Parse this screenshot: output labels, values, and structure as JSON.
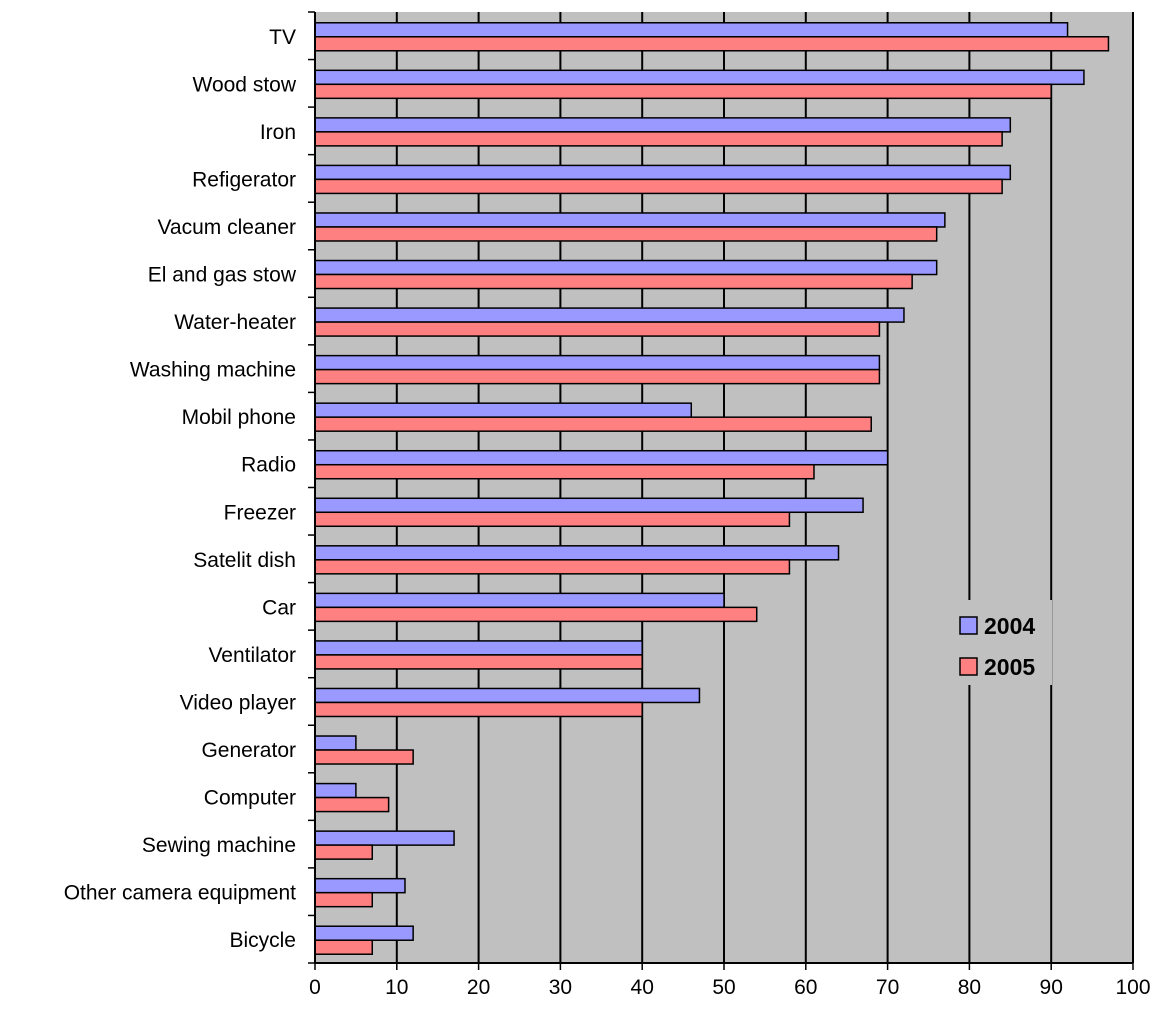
{
  "chart_data": {
    "type": "bar",
    "orientation": "horizontal",
    "categories": [
      "TV",
      "Wood stow",
      "Iron",
      "Refigerator",
      "Vacum cleaner",
      "El and gas stow",
      "Water-heater",
      "Washing machine",
      "Mobil phone",
      "Radio",
      "Freezer",
      "Satelit dish",
      "Car",
      "Ventilator",
      "Video player",
      "Generator",
      "Computer",
      "Sewing machine",
      "Other camera equipment",
      "Bicycle"
    ],
    "series": [
      {
        "name": "2004",
        "color": "#9999ff",
        "values": [
          92,
          94,
          85,
          85,
          77,
          76,
          72,
          69,
          46,
          70,
          67,
          64,
          50,
          40,
          47,
          5,
          5,
          17,
          11,
          12
        ]
      },
      {
        "name": "2005",
        "color": "#ff8080",
        "values": [
          97,
          90,
          84,
          84,
          76,
          73,
          69,
          69,
          68,
          61,
          58,
          58,
          54,
          40,
          40,
          12,
          9,
          7,
          7,
          7
        ]
      }
    ],
    "xlim": [
      0,
      100
    ],
    "x_ticks": [
      "0",
      "10",
      "20",
      "30",
      "40",
      "50",
      "60",
      "70",
      "80",
      "90",
      "100"
    ],
    "xlabel": "",
    "ylabel": "",
    "title": "",
    "grid": true,
    "plot_background": "#c0c0c0",
    "legend_position": "right"
  }
}
